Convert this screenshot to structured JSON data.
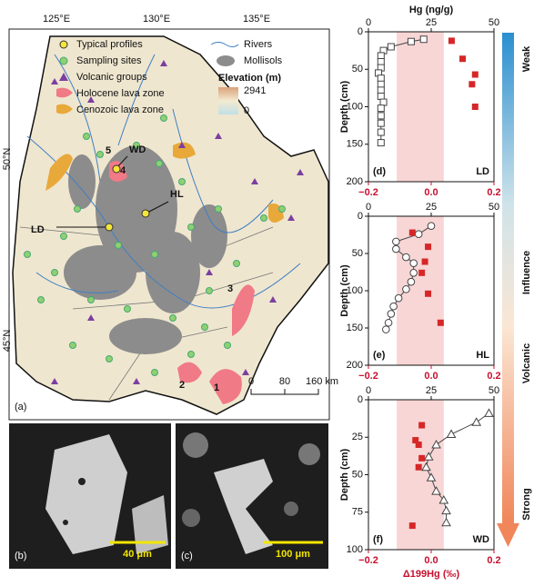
{
  "map": {
    "panel": "(a)",
    "lon_labels": [
      "125°E",
      "130°E",
      "135°E"
    ],
    "lat_labels": [
      "50°N",
      "45°N"
    ],
    "legend": {
      "typical_profiles": "Typical profiles",
      "sampling_sites": "Sampling sites",
      "volcanic_groups": "Volcanic groups",
      "holocene": "Holocene lava zone",
      "cenozoic": "Cenozoic lava zone",
      "rivers": "Rivers",
      "mollisols": "Mollisols",
      "elevation": "Elevation (m)",
      "elev_max": "2941",
      "elev_min": "0"
    },
    "site_labels": [
      "LD",
      "WD",
      "HL"
    ],
    "zone_labels": [
      "1",
      "2",
      "3",
      "4",
      "5"
    ],
    "scale": [
      "0",
      "80",
      "160 km"
    ]
  },
  "micrographs": [
    {
      "panel": "(b)",
      "scale": "40 μm"
    },
    {
      "panel": "(c)",
      "scale": "100 μm"
    }
  ],
  "gradient": {
    "top": "Weak",
    "middle": [
      "Volcanic",
      "Influence"
    ],
    "bottom": "Strong"
  },
  "chart_data": [
    {
      "type": "profile",
      "panel": "(d)",
      "site": "LD",
      "x_label": "Hg (ng/g)",
      "y_label": "Depth (cm)",
      "xlim": [
        0,
        50
      ],
      "xticks": [
        0,
        25,
        50
      ],
      "x2lim": [
        -0.2,
        0.2
      ],
      "x2ticks": [
        {
          "value": -0.2,
          "label": "−0.2"
        },
        {
          "value": 0,
          "label": "0.0"
        },
        {
          "value": 0.2,
          "label": "0.2"
        }
      ],
      "ylim": [
        0,
        200
      ],
      "yticks": [
        0,
        50,
        100,
        150,
        200
      ],
      "y_inverted": true,
      "band": [
        -0.11,
        0.04
      ],
      "band_color": "#f9d6d6",
      "series": [
        {
          "marker": "square",
          "color": "#444444",
          "line": true,
          "x": [
            22,
            17,
            9,
            6,
            5,
            5,
            5,
            4,
            5,
            5,
            5,
            5,
            6,
            5,
            5,
            5,
            5,
            5
          ],
          "y": [
            10,
            13,
            20,
            25,
            32,
            40,
            48,
            55,
            62,
            70,
            78,
            86,
            94,
            102,
            112,
            122,
            134,
            148
          ]
        },
        {
          "marker": "square-filled",
          "color": "#d62728",
          "line": false,
          "axis": "x2",
          "x": [
            0.065,
            0.1,
            0.14,
            0.13,
            0.14
          ],
          "y": [
            12,
            36,
            57,
            70,
            100
          ]
        }
      ]
    },
    {
      "type": "profile",
      "panel": "(e)",
      "site": "HL",
      "y_label": "Depth (cm)",
      "xlim": [
        0,
        50
      ],
      "xticks": [
        0,
        25,
        50
      ],
      "x2lim": [
        -0.2,
        0.2
      ],
      "x2ticks": [
        {
          "value": -0.2,
          "label": "−0.2"
        },
        {
          "value": 0,
          "label": "0.0"
        },
        {
          "value": 0.2,
          "label": "0.2"
        }
      ],
      "ylim": [
        0,
        200
      ],
      "yticks": [
        0,
        50,
        100,
        150,
        200
      ],
      "y_inverted": true,
      "band": [
        -0.11,
        0.04
      ],
      "band_color": "#f9d6d6",
      "series": [
        {
          "marker": "circle",
          "color": "#444444",
          "line": true,
          "x": [
            25,
            20,
            11,
            11,
            15,
            18,
            18,
            17,
            15,
            12,
            10,
            9,
            8,
            7
          ],
          "y": [
            13,
            24,
            34,
            44,
            55,
            63,
            76,
            88,
            98,
            110,
            121,
            131,
            143,
            152
          ]
        },
        {
          "marker": "square-filled",
          "color": "#d62728",
          "line": false,
          "axis": "x2",
          "x": [
            -0.06,
            -0.01,
            -0.02,
            -0.03,
            -0.01,
            0.03
          ],
          "y": [
            22,
            41,
            61,
            76,
            104,
            143
          ]
        }
      ]
    },
    {
      "type": "profile",
      "panel": "(f)",
      "site": "WD",
      "y_label": "Depth (cm)",
      "x2_label": "Δ199Hg (‰)",
      "xlim": [
        0,
        50
      ],
      "xticks": [
        0,
        25,
        50
      ],
      "x2lim": [
        -0.2,
        0.2
      ],
      "x2ticks": [
        {
          "value": -0.2,
          "label": "−0.2"
        },
        {
          "value": 0,
          "label": "0.0"
        },
        {
          "value": 0.2,
          "label": "0.2"
        }
      ],
      "ylim": [
        0,
        100
      ],
      "yticks": [
        0,
        25,
        50,
        75,
        100
      ],
      "y_inverted": true,
      "band": [
        -0.11,
        0.04
      ],
      "band_color": "#f9d6d6",
      "series": [
        {
          "marker": "triangle",
          "color": "#444444",
          "line": true,
          "x": [
            48,
            43,
            33,
            27,
            24,
            23,
            25,
            27,
            30,
            31,
            31
          ],
          "y": [
            9,
            15,
            23,
            30,
            38,
            45,
            52,
            61,
            67,
            74,
            82
          ]
        },
        {
          "marker": "square-filled",
          "color": "#d62728",
          "line": false,
          "axis": "x2",
          "x": [
            -0.03,
            -0.05,
            -0.04,
            -0.03,
            -0.04,
            -0.06
          ],
          "y": [
            17,
            27,
            30,
            39,
            45,
            84
          ]
        }
      ]
    }
  ]
}
